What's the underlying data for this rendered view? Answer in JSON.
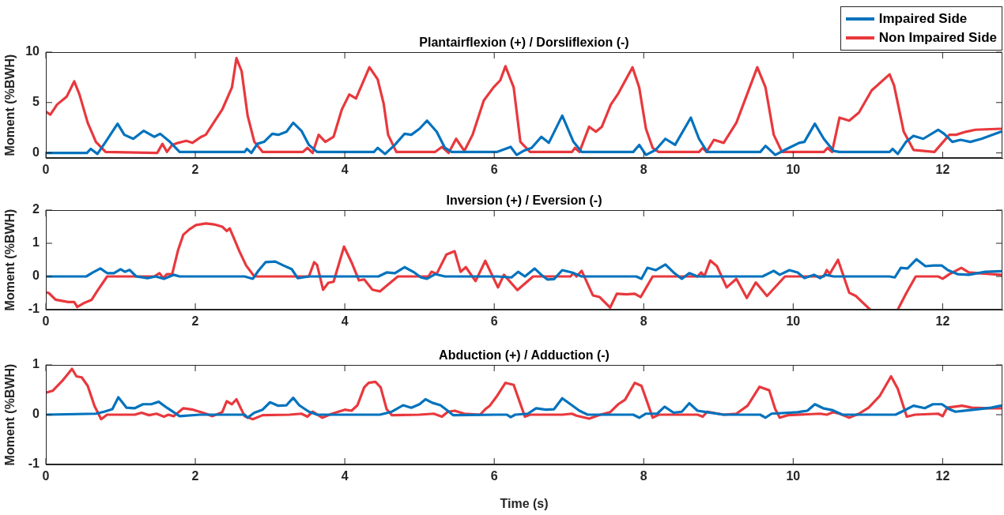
{
  "chart_data": [
    {
      "type": "line",
      "title": "Plantairflexion (+) / Dorsliflexion (-)",
      "ylabel": "Moment (%BWH)",
      "xlim": [
        0,
        12.8
      ],
      "xticks": [
        0,
        2,
        4,
        6,
        8,
        10,
        12
      ],
      "ylim": [
        -0.5,
        10
      ],
      "yticks": [
        0,
        5,
        10
      ],
      "grid": false,
      "legend": "top right",
      "series": [
        {
          "name": "Impaired Side",
          "color": "#0072bd",
          "x": [
            0,
            0.55,
            0.6,
            0.69,
            0.8,
            0.96,
            1.05,
            1.17,
            1.31,
            1.45,
            1.53,
            1.66,
            1.79,
            2.66,
            2.69,
            2.75,
            2.83,
            2.92,
            3.03,
            3.11,
            3.22,
            3.31,
            3.42,
            3.52,
            3.63,
            4.39,
            4.44,
            4.54,
            4.67,
            4.8,
            4.89,
            5.0,
            5.1,
            5.23,
            5.34,
            5.43,
            6.04,
            6.22,
            6.3,
            6.39,
            6.5,
            6.63,
            6.73,
            6.91,
            7.06,
            7.17,
            7.86,
            7.94,
            8.03,
            8.16,
            8.29,
            8.42,
            8.63,
            8.74,
            8.85,
            9.56,
            9.63,
            9.76,
            9.89,
            10.08,
            10.15,
            10.29,
            10.41,
            10.54,
            10.62,
            11.29,
            11.33,
            11.4,
            11.51,
            11.61,
            11.74,
            11.94,
            12.02,
            12.13,
            12.24,
            12.37,
            12.52,
            12.78
          ],
          "values": [
            0,
            0,
            0.4,
            -0.1,
            1.1,
            2.9,
            1.8,
            1.4,
            2.2,
            1.6,
            1.9,
            1.1,
            0.1,
            0.1,
            0.4,
            0,
            0.9,
            1.1,
            1.9,
            1.8,
            2.1,
            3.0,
            2.2,
            0.8,
            0.1,
            0.1,
            0.5,
            -0.1,
            0.8,
            1.9,
            1.8,
            2.4,
            3.2,
            2.1,
            0.5,
            0.1,
            0.1,
            0.6,
            -0.2,
            0.2,
            0.5,
            1.6,
            1.0,
            3.7,
            1.1,
            0.1,
            0.1,
            0.8,
            -0.2,
            0.3,
            1.4,
            0.8,
            3.5,
            1.4,
            0.1,
            0.1,
            0.7,
            -0.2,
            0.3,
            1.0,
            1.1,
            2.9,
            1.4,
            0.2,
            0.1,
            0.1,
            0.4,
            -0.1,
            1.1,
            1.7,
            1.4,
            2.3,
            1.9,
            1.1,
            1.3,
            1.1,
            1.4,
            2.1
          ]
        },
        {
          "name": "Non Impaired Side",
          "color": "#e8383d",
          "x": [
            0,
            0.06,
            0.15,
            0.28,
            0.38,
            0.45,
            0.56,
            0.67,
            0.8,
            1.49,
            1.56,
            1.62,
            1.69,
            1.77,
            1.88,
            1.96,
            2.08,
            2.14,
            2.36,
            2.49,
            2.55,
            2.62,
            2.7,
            2.79,
            2.9,
            3.44,
            3.5,
            3.57,
            3.65,
            3.74,
            3.85,
            3.96,
            4.06,
            4.15,
            4.33,
            4.44,
            4.52,
            4.58,
            4.69,
            5.21,
            5.3,
            5.39,
            5.49,
            5.6,
            5.71,
            5.86,
            5.99,
            6.08,
            6.15,
            6.26,
            6.35,
            6.48,
            7.04,
            7.08,
            7.14,
            7.27,
            7.36,
            7.44,
            7.56,
            7.66,
            7.85,
            7.94,
            8.03,
            8.12,
            8.2,
            8.74,
            8.79,
            8.84,
            8.94,
            9.07,
            9.24,
            9.52,
            9.63,
            9.74,
            9.85,
            10.41,
            10.46,
            10.52,
            10.62,
            10.75,
            10.88,
            11.05,
            11.29,
            11.35,
            11.48,
            11.61,
            11.89,
            12.09,
            12.18,
            12.31,
            12.44,
            12.78
          ],
          "values": [
            4.1,
            3.8,
            4.8,
            5.6,
            7.1,
            5.8,
            3.0,
            1.1,
            0.1,
            0,
            0.9,
            0.1,
            0.8,
            1.0,
            1.2,
            1.0,
            1.6,
            1.8,
            4.3,
            6.5,
            9.4,
            8.1,
            3.7,
            1.1,
            0.1,
            0.1,
            0.5,
            0,
            1.8,
            1.1,
            1.6,
            4.3,
            5.8,
            5.4,
            8.5,
            7.3,
            4.9,
            1.8,
            0.1,
            0.1,
            0.6,
            0,
            1.4,
            0.2,
            1.8,
            5.2,
            6.5,
            7.2,
            8.6,
            6.5,
            1.1,
            0.1,
            0.1,
            0.5,
            0.1,
            2.6,
            2.1,
            2.6,
            4.8,
            5.9,
            8.5,
            6.5,
            2.4,
            0.5,
            0.1,
            0.1,
            0.5,
            0.1,
            1.3,
            1.0,
            3.0,
            8.5,
            6.5,
            1.8,
            0.1,
            0.1,
            0.5,
            0.1,
            3.5,
            3.2,
            4.0,
            6.2,
            7.8,
            6.7,
            2.1,
            0.3,
            0.1,
            1.8,
            1.8,
            2.1,
            2.3,
            2.4
          ]
        }
      ]
    },
    {
      "type": "line",
      "title": "Inversion (+) / Eversion (-)",
      "ylabel": "Moment (%BWH)",
      "xlim": [
        0,
        12.8
      ],
      "xticks": [
        0,
        2,
        4,
        6,
        8,
        10,
        12
      ],
      "ylim": [
        -1,
        2
      ],
      "yticks": [
        -1,
        0,
        1,
        2
      ],
      "grid": false,
      "series": [
        {
          "color": "#0072bd",
          "x": [
            0,
            0.54,
            0.63,
            0.73,
            0.82,
            0.91,
            1.0,
            1.06,
            1.12,
            1.21,
            1.36,
            1.47,
            1.58,
            1.71,
            1.79,
            2.66,
            2.77,
            2.85,
            2.94,
            3.07,
            3.18,
            3.29,
            3.37,
            3.52,
            4.39,
            4.45,
            4.56,
            4.67,
            4.8,
            4.93,
            5.02,
            5.1,
            5.21,
            5.34,
            6.04,
            6.23,
            6.32,
            6.41,
            6.54,
            6.63,
            6.71,
            6.8,
            6.91,
            7.04,
            7.17,
            7.9,
            7.97,
            8.05,
            8.16,
            8.29,
            8.4,
            8.51,
            8.61,
            8.72,
            9.59,
            9.74,
            9.82,
            9.95,
            10.06,
            10.15,
            10.28,
            10.36,
            10.43,
            10.54,
            11.29,
            11.36,
            11.44,
            11.53,
            11.65,
            11.77,
            11.88,
            11.99,
            12.07,
            12.2,
            12.35,
            12.57,
            12.78
          ],
          "values": [
            0,
            0,
            0.12,
            0.24,
            0.1,
            0.1,
            0.22,
            0.14,
            0.2,
            0,
            -0.05,
            0,
            -0.07,
            0.05,
            0,
            0,
            -0.07,
            0.19,
            0.43,
            0.45,
            0.33,
            0.22,
            -0.05,
            0,
            0,
            0,
            0.12,
            0.1,
            0.28,
            0.12,
            -0.03,
            -0.07,
            0.07,
            0,
            0,
            -0.03,
            0.14,
            0,
            0.24,
            0.05,
            -0.09,
            -0.08,
            0.19,
            0.12,
            0,
            0,
            -0.07,
            0.26,
            0.19,
            0.36,
            0.12,
            -0.07,
            0.1,
            0,
            0,
            0.17,
            0.05,
            0.19,
            0.12,
            -0.05,
            0.05,
            -0.05,
            0.05,
            0,
            0,
            -0.03,
            0.26,
            0.24,
            0.52,
            0.31,
            0.33,
            0.33,
            0.19,
            0.07,
            0.05,
            0.14,
            0.16
          ]
        },
        {
          "color": "#e8383d",
          "x": [
            0,
            0.04,
            0.13,
            0.3,
            0.38,
            0.42,
            0.52,
            0.61,
            0.69,
            0.82,
            1.45,
            1.52,
            1.57,
            1.62,
            1.69,
            1.77,
            1.84,
            1.92,
            2.01,
            2.14,
            2.25,
            2.36,
            2.42,
            2.46,
            2.51,
            2.59,
            2.68,
            2.79,
            3.52,
            3.59,
            3.63,
            3.71,
            3.78,
            3.85,
            3.99,
            4.09,
            4.19,
            4.26,
            4.37,
            4.47,
            4.56,
            4.71,
            5.12,
            5.16,
            5.23,
            5.36,
            5.47,
            5.55,
            5.62,
            5.75,
            5.88,
            6.05,
            6.13,
            6.31,
            6.52,
            7.02,
            7.06,
            7.1,
            7.17,
            7.32,
            7.41,
            7.55,
            7.64,
            7.77,
            7.88,
            7.96,
            8.12,
            8.72,
            8.77,
            8.81,
            8.89,
            8.98,
            9.11,
            9.24,
            9.38,
            9.5,
            9.65,
            9.89,
            10.41,
            10.45,
            10.49,
            10.6,
            10.75,
            10.84,
            11.03,
            11.2,
            11.4,
            11.51,
            11.64,
            11.94,
            12.0,
            12.09,
            12.25,
            12.35,
            12.52,
            12.78
          ],
          "values": [
            -0.48,
            -0.5,
            -0.7,
            -0.77,
            -0.77,
            -0.92,
            -0.79,
            -0.71,
            -0.43,
            0,
            0,
            0.1,
            -0.05,
            0.07,
            0.07,
            0.8,
            1.26,
            1.42,
            1.55,
            1.6,
            1.57,
            1.5,
            1.37,
            1.45,
            1.19,
            0.76,
            0.33,
            0,
            0,
            0.43,
            0.34,
            -0.4,
            -0.19,
            -0.16,
            0.9,
            0.43,
            -0.12,
            -0.09,
            -0.4,
            -0.45,
            -0.28,
            0,
            0,
            0.14,
            0.08,
            0.66,
            0.76,
            0.14,
            0.28,
            -0.14,
            0.47,
            -0.33,
            0.05,
            -0.41,
            0,
            0,
            0.1,
            0,
            0.17,
            -0.57,
            -0.62,
            -0.94,
            -0.52,
            -0.54,
            -0.52,
            -0.62,
            0,
            0,
            0.12,
            0,
            0.48,
            0.31,
            -0.33,
            -0.07,
            -0.65,
            -0.18,
            -0.59,
            0,
            0,
            0.19,
            0.08,
            0.5,
            -0.49,
            -0.59,
            -1.0,
            null,
            -1.0,
            -0.52,
            0,
            0,
            -0.07,
            0.07,
            0.26,
            0.12,
            0.09,
            0.05
          ]
        }
      ]
    },
    {
      "type": "line",
      "title": "Abduction (+) / Adduction (-)",
      "xlabel": "Time (s)",
      "ylabel": "Moment (%BWH)",
      "xlim": [
        0,
        12.8
      ],
      "xticks": [
        0,
        2,
        4,
        6,
        8,
        10,
        12
      ],
      "ylim": [
        -1,
        1
      ],
      "yticks": [
        -1,
        0,
        1
      ],
      "grid": false,
      "series": [
        {
          "color": "#0072bd",
          "x": [
            0,
            0.67,
            0.78,
            0.89,
            0.97,
            1.08,
            1.19,
            1.3,
            1.41,
            1.51,
            1.62,
            1.79,
            2.06,
            2.66,
            2.7,
            2.79,
            2.9,
            3.0,
            3.11,
            3.22,
            3.31,
            3.39,
            3.52,
            3.63,
            4.43,
            4.47,
            4.63,
            4.78,
            4.89,
            5.0,
            5.08,
            5.17,
            5.28,
            5.36,
            5.45,
            6.03,
            6.17,
            6.22,
            6.28,
            6.45,
            6.56,
            6.69,
            6.8,
            6.91,
            7.02,
            7.14,
            7.25,
            7.86,
            7.94,
            8.03,
            8.18,
            8.28,
            8.4,
            8.51,
            8.61,
            8.72,
            8.85,
            9.07,
            9.56,
            9.63,
            9.71,
            10.06,
            10.19,
            10.29,
            10.4,
            10.53,
            10.66,
            11.29,
            11.37,
            11.48,
            11.61,
            11.76,
            11.87,
            11.99,
            12.09,
            12.17,
            12.3,
            12.47,
            12.65,
            12.78
          ],
          "values": [
            0,
            0.02,
            0.06,
            0.11,
            0.35,
            0.14,
            0.13,
            0.21,
            0.21,
            0.26,
            0.14,
            -0.03,
            0,
            0,
            -0.06,
            0.04,
            0.1,
            0.25,
            0.18,
            0.19,
            0.34,
            0.19,
            0.06,
            0,
            0,
            0,
            0.06,
            0.19,
            0.14,
            0.21,
            0.31,
            0.24,
            0.19,
            0.1,
            -0.01,
            0,
            0,
            -0.05,
            0,
            0.02,
            0.13,
            0.1,
            0.11,
            0.33,
            0.21,
            0.08,
            0,
            0,
            -0.06,
            0.02,
            0.02,
            0.16,
            0.04,
            0.06,
            0.23,
            0.08,
            0.05,
            0,
            0,
            -0.06,
            0.02,
            0.05,
            0.08,
            0.21,
            0.13,
            0.09,
            0,
            0,
            0,
            0.08,
            0.18,
            0.13,
            0.21,
            0.21,
            0.11,
            0.06,
            0.08,
            0.11,
            0.14,
            0.18
          ]
        },
        {
          "color": "#e8383d",
          "x": [
            0,
            0.09,
            0.22,
            0.35,
            0.41,
            0.48,
            0.56,
            0.65,
            0.74,
            0.82,
            1.19,
            1.28,
            1.38,
            1.48,
            1.58,
            1.64,
            1.71,
            1.84,
            1.97,
            2.14,
            2.23,
            2.36,
            2.42,
            2.49,
            2.55,
            2.66,
            2.77,
            2.9,
            3.26,
            3.42,
            3.5,
            3.57,
            3.7,
            3.83,
            4.0,
            4.09,
            4.17,
            4.26,
            4.32,
            4.41,
            4.48,
            4.56,
            4.63,
            5.0,
            5.19,
            5.3,
            5.38,
            5.47,
            5.6,
            5.81,
            5.88,
            5.94,
            6.03,
            6.15,
            6.26,
            6.41,
            6.48,
            6.91,
            7.04,
            7.1,
            7.27,
            7.42,
            7.55,
            7.66,
            7.75,
            7.88,
            7.97,
            8.05,
            8.12,
            8.2,
            8.72,
            8.79,
            8.85,
            9.07,
            9.24,
            9.39,
            9.55,
            9.68,
            9.76,
            9.82,
            9.93,
            10.36,
            10.45,
            10.54,
            10.62,
            10.75,
            10.88,
            11.01,
            11.16,
            11.31,
            11.4,
            11.52,
            11.63,
            11.94,
            12.0,
            12.06,
            12.26,
            12.39,
            12.6,
            12.78
          ],
          "values": [
            0.44,
            0.48,
            0.68,
            0.92,
            0.77,
            0.75,
            0.58,
            0.18,
            -0.09,
            0,
            0,
            0.04,
            -0.01,
            0.02,
            -0.04,
            0,
            -0.03,
            0.13,
            0.1,
            0.02,
            -0.03,
            0.05,
            0.27,
            0.21,
            0.31,
            -0.03,
            -0.09,
            -0.01,
            0,
            0.02,
            -0.04,
            0.06,
            -0.06,
            0.02,
            0.1,
            0.08,
            0.19,
            0.55,
            0.64,
            0.66,
            0.55,
            0.11,
            -0.01,
            0,
            0.02,
            -0.04,
            0.06,
            0.08,
            0.02,
            0,
            0.11,
            0.18,
            0.36,
            0.64,
            0.6,
            -0.04,
            0,
            0,
            0.02,
            -0.02,
            -0.08,
            0,
            0.05,
            0.21,
            0.3,
            0.64,
            0.58,
            0.24,
            -0.06,
            0,
            0,
            -0.04,
            0.06,
            0,
            0.02,
            0.18,
            0.56,
            0.49,
            0.11,
            -0.06,
            -0.01,
            0.02,
            0,
            0.05,
            0.02,
            -0.06,
            0.02,
            0.14,
            0.38,
            0.77,
            0.52,
            -0.04,
            0,
            0.02,
            -0.03,
            0.14,
            0.18,
            0.14,
            0.13,
            0.13
          ]
        }
      ]
    }
  ]
}
